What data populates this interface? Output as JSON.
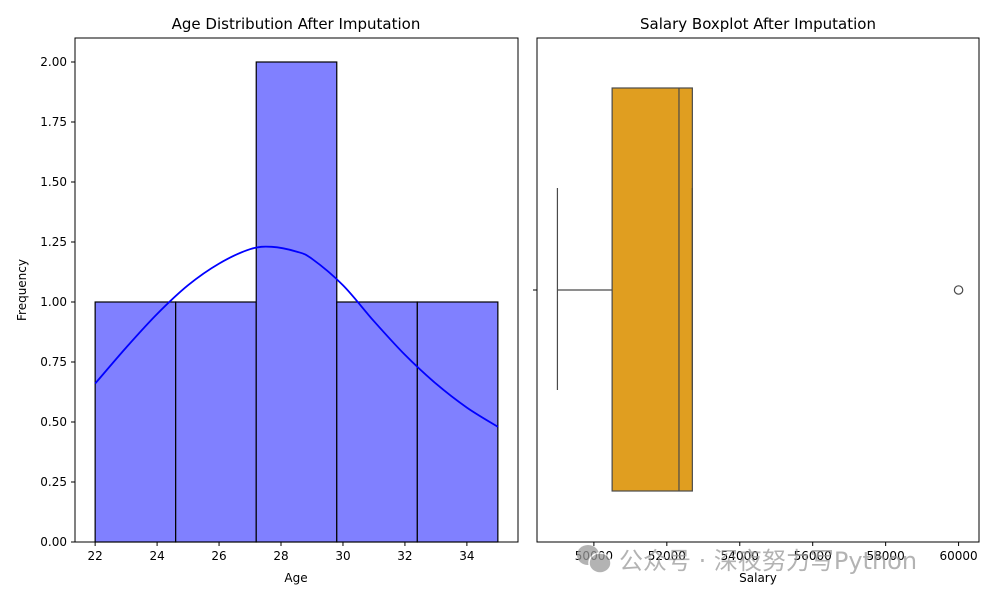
{
  "chart_data": [
    {
      "type": "histogram",
      "title": "Age Distribution After Imputation",
      "xlabel": "Age",
      "ylabel": "Frequency",
      "xlim": [
        21.35,
        35.65
      ],
      "ylim": [
        0,
        2.1
      ],
      "bins": [
        {
          "start": 22.0,
          "end": 24.6,
          "count": 1
        },
        {
          "start": 24.6,
          "end": 27.2,
          "count": 1
        },
        {
          "start": 27.2,
          "end": 29.8,
          "count": 2
        },
        {
          "start": 29.8,
          "end": 32.4,
          "count": 1
        },
        {
          "start": 32.4,
          "end": 35.0,
          "count": 1
        }
      ],
      "kde": {
        "x": [
          22,
          23,
          24,
          25,
          26,
          27,
          27.7,
          28.5,
          29,
          30,
          31,
          32,
          33,
          34,
          35
        ],
        "y": [
          0.66,
          0.81,
          0.95,
          1.07,
          1.16,
          1.22,
          1.23,
          1.21,
          1.18,
          1.07,
          0.92,
          0.78,
          0.66,
          0.56,
          0.48
        ]
      },
      "xticks": [
        22,
        24,
        26,
        28,
        30,
        32,
        34
      ],
      "xtick_labels": [
        "22",
        "24",
        "26",
        "28",
        "30",
        "32",
        "34"
      ],
      "yticks": [
        0,
        0.25,
        0.5,
        0.75,
        1.0,
        1.25,
        1.5,
        1.75,
        2.0
      ],
      "ytick_labels": [
        "0.00",
        "0.25",
        "0.50",
        "0.75",
        "1.00",
        "1.25",
        "1.50",
        "1.75",
        "2.00"
      ],
      "bar_color": "#8080ff",
      "line_color": "#0000ff"
    },
    {
      "type": "boxplot",
      "title": "Salary Boxplot After Imputation",
      "xlabel": "Salary",
      "ylabel": "",
      "xlim": [
        48440,
        60560
      ],
      "whisker_low": 49000,
      "q1": 50500,
      "median": 52333,
      "q3": 52700,
      "whisker_high": 52700,
      "outliers": [
        60000
      ],
      "xticks": [
        50000,
        52000,
        54000,
        56000,
        58000,
        60000
      ],
      "xtick_labels": [
        "50000",
        "52000",
        "54000",
        "56000",
        "58000",
        "60000"
      ],
      "box_color": "#e09e20",
      "line_color": "#4a4a4a"
    }
  ],
  "watermark": {
    "text": "公众号 · 深夜努力写Python",
    "icon": "wechat-icon",
    "color": "#9a9a9a"
  }
}
